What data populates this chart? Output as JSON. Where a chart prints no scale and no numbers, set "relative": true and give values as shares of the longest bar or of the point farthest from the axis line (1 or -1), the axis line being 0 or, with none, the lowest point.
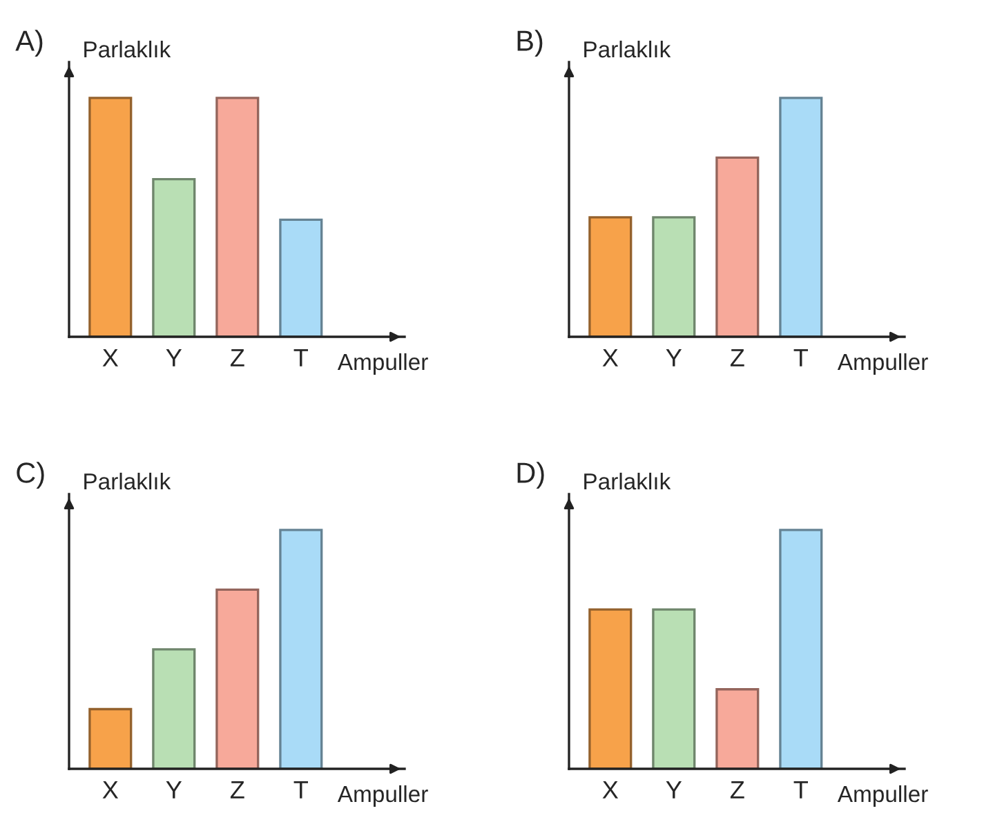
{
  "chart_data": [
    {
      "type": "bar",
      "title": "A)",
      "ylabel": "Parlaklık",
      "xlabel": "Ampuller",
      "categories": [
        "X",
        "Y",
        "Z",
        "T"
      ],
      "values": [
        1,
        0.66,
        1,
        0.49
      ],
      "colors": [
        "#f7a24a",
        "#b9dfb4",
        "#f7a99a",
        "#a9dbf7"
      ],
      "relative": true
    },
    {
      "type": "bar",
      "title": "B)",
      "ylabel": "Parlaklık",
      "xlabel": "Ampuller",
      "categories": [
        "X",
        "Y",
        "Z",
        "T"
      ],
      "values": [
        0.5,
        0.5,
        0.75,
        1
      ],
      "colors": [
        "#f7a24a",
        "#b9dfb4",
        "#f7a99a",
        "#a9dbf7"
      ],
      "relative": true
    },
    {
      "type": "bar",
      "title": "C)",
      "ylabel": "Parlaklık",
      "xlabel": "Ampuller",
      "categories": [
        "X",
        "Y",
        "Z",
        "T"
      ],
      "values": [
        0.25,
        0.5,
        0.75,
        1
      ],
      "colors": [
        "#f7a24a",
        "#b9dfb4",
        "#f7a99a",
        "#a9dbf7"
      ],
      "relative": true
    },
    {
      "type": "bar",
      "title": "D)",
      "ylabel": "Parlaklık",
      "xlabel": "Ampuller",
      "categories": [
        "X",
        "Y",
        "Z",
        "T"
      ],
      "values": [
        0.667,
        0.667,
        0.333,
        1
      ],
      "colors": [
        "#f7a24a",
        "#b9dfb4",
        "#f7a99a",
        "#a9dbf7"
      ],
      "relative": true
    }
  ]
}
